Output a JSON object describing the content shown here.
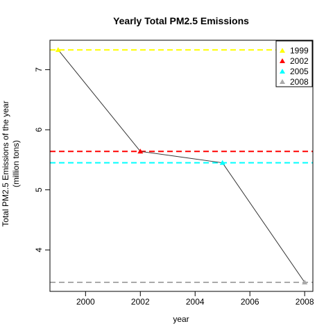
{
  "chart_data": {
    "type": "line",
    "title": "Yearly Total PM2.5 Emissions",
    "xlabel": "year",
    "ylabel_line1": "Total PM2.5 Emissions of the year",
    "ylabel_line2": "(million tons)",
    "xlim": [
      1998.7,
      2008.3
    ],
    "ylim": [
      3.31,
      7.49
    ],
    "x_ticks": [
      2000,
      2002,
      2004,
      2006,
      2008
    ],
    "x_tick_labels": [
      "2000",
      "2002",
      "2004",
      "2006",
      "2008"
    ],
    "y_ticks": [
      4,
      5,
      6,
      7
    ],
    "y_tick_labels": [
      "4",
      "5",
      "6",
      "7"
    ],
    "grid": false,
    "legend_position": "top-right",
    "line_color": "#333333",
    "points": [
      {
        "year": 1999,
        "value": 7.33,
        "label": "1999",
        "color": "#ffff00"
      },
      {
        "year": 2002,
        "value": 5.64,
        "label": "2002",
        "color": "#ff0000"
      },
      {
        "year": 2005,
        "value": 5.45,
        "label": "2005",
        "color": "#00ffff"
      },
      {
        "year": 2008,
        "value": 3.46,
        "label": "2008",
        "color": "#aaaaaa"
      }
    ]
  }
}
